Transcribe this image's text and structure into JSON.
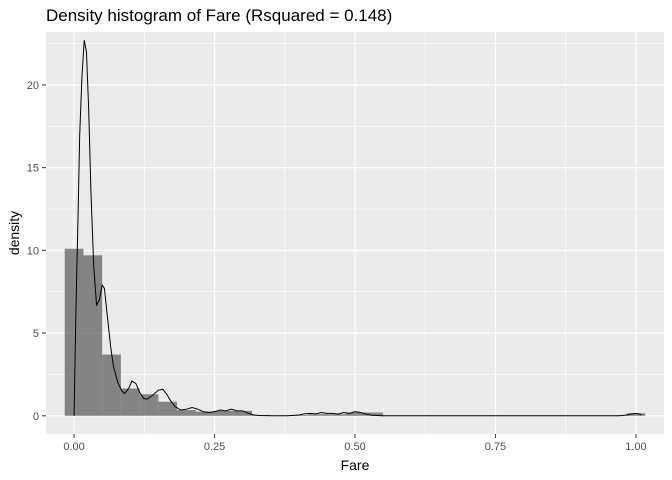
{
  "chart_data": {
    "type": "histogram",
    "title": "Density histogram of Fare (Rsquared = 0.148)",
    "xlabel": "Fare",
    "ylabel": "density",
    "xlim": [
      -0.05,
      1.05
    ],
    "ylim": [
      -1.1,
      23.2
    ],
    "x_ticks": [
      0.0,
      0.25,
      0.5,
      0.75,
      1.0
    ],
    "x_tick_labels": [
      "0.00",
      "0.25",
      "0.50",
      "0.75",
      "1.00"
    ],
    "y_ticks": [
      0,
      5,
      10,
      15,
      20
    ],
    "y_tick_labels": [
      "0",
      "5",
      "10",
      "15",
      "20"
    ],
    "grid": true,
    "colors": {
      "panel": "#ebebeb",
      "grid": "#ffffff",
      "bar": "#595959",
      "line": "#000000"
    },
    "bin_width": 0.0333,
    "bins": [
      {
        "x0": -0.0167,
        "x1": 0.0167,
        "density": 10.1
      },
      {
        "x0": 0.0167,
        "x1": 0.05,
        "density": 9.7
      },
      {
        "x0": 0.05,
        "x1": 0.0833,
        "density": 3.7
      },
      {
        "x0": 0.0833,
        "x1": 0.1167,
        "density": 1.65
      },
      {
        "x0": 0.1167,
        "x1": 0.15,
        "density": 1.3
      },
      {
        "x0": 0.15,
        "x1": 0.1833,
        "density": 0.85
      },
      {
        "x0": 0.1833,
        "x1": 0.2167,
        "density": 0.35
      },
      {
        "x0": 0.2167,
        "x1": 0.25,
        "density": 0.25
      },
      {
        "x0": 0.25,
        "x1": 0.2833,
        "density": 0.3
      },
      {
        "x0": 0.2833,
        "x1": 0.3167,
        "density": 0.3
      },
      {
        "x0": 0.3167,
        "x1": 0.35,
        "density": 0.05
      },
      {
        "x0": 0.35,
        "x1": 0.3833,
        "density": 0.0
      },
      {
        "x0": 0.3833,
        "x1": 0.4167,
        "density": 0.05
      },
      {
        "x0": 0.4167,
        "x1": 0.45,
        "density": 0.1
      },
      {
        "x0": 0.45,
        "x1": 0.4833,
        "density": 0.1
      },
      {
        "x0": 0.4833,
        "x1": 0.5167,
        "density": 0.2
      },
      {
        "x0": 0.5167,
        "x1": 0.55,
        "density": 0.2
      },
      {
        "x0": 0.9833,
        "x1": 1.0167,
        "density": 0.15
      }
    ],
    "density_curve": [
      [
        0.0,
        0.0
      ],
      [
        0.003,
        6.0
      ],
      [
        0.007,
        12.0
      ],
      [
        0.01,
        17.0
      ],
      [
        0.014,
        20.5
      ],
      [
        0.018,
        22.7
      ],
      [
        0.022,
        22.0
      ],
      [
        0.026,
        18.5
      ],
      [
        0.03,
        13.5
      ],
      [
        0.035,
        9.0
      ],
      [
        0.04,
        6.7
      ],
      [
        0.045,
        7.0
      ],
      [
        0.05,
        7.9
      ],
      [
        0.054,
        7.7
      ],
      [
        0.058,
        6.4
      ],
      [
        0.065,
        4.2
      ],
      [
        0.07,
        3.0
      ],
      [
        0.078,
        2.0
      ],
      [
        0.085,
        1.5
      ],
      [
        0.09,
        1.35
      ],
      [
        0.097,
        1.65
      ],
      [
        0.103,
        2.1
      ],
      [
        0.11,
        1.95
      ],
      [
        0.117,
        1.4
      ],
      [
        0.124,
        1.05
      ],
      [
        0.13,
        1.0
      ],
      [
        0.14,
        1.25
      ],
      [
        0.15,
        1.55
      ],
      [
        0.158,
        1.6
      ],
      [
        0.165,
        1.3
      ],
      [
        0.172,
        0.9
      ],
      [
        0.18,
        0.55
      ],
      [
        0.19,
        0.35
      ],
      [
        0.2,
        0.4
      ],
      [
        0.21,
        0.5
      ],
      [
        0.22,
        0.4
      ],
      [
        0.23,
        0.25
      ],
      [
        0.24,
        0.2
      ],
      [
        0.25,
        0.25
      ],
      [
        0.26,
        0.35
      ],
      [
        0.27,
        0.3
      ],
      [
        0.28,
        0.4
      ],
      [
        0.29,
        0.3
      ],
      [
        0.3,
        0.3
      ],
      [
        0.31,
        0.15
      ],
      [
        0.32,
        0.05
      ],
      [
        0.33,
        0.02
      ],
      [
        0.35,
        0.0
      ],
      [
        0.38,
        0.0
      ],
      [
        0.4,
        0.05
      ],
      [
        0.41,
        0.12
      ],
      [
        0.42,
        0.15
      ],
      [
        0.43,
        0.12
      ],
      [
        0.44,
        0.2
      ],
      [
        0.45,
        0.15
      ],
      [
        0.46,
        0.15
      ],
      [
        0.47,
        0.1
      ],
      [
        0.48,
        0.2
      ],
      [
        0.49,
        0.15
      ],
      [
        0.5,
        0.25
      ],
      [
        0.51,
        0.2
      ],
      [
        0.52,
        0.1
      ],
      [
        0.53,
        0.03
      ],
      [
        0.55,
        0.0
      ],
      [
        0.7,
        0.0
      ],
      [
        0.9,
        0.0
      ],
      [
        0.97,
        0.0
      ],
      [
        0.985,
        0.05
      ],
      [
        0.99,
        0.1
      ],
      [
        1.0,
        0.15
      ],
      [
        1.005,
        0.12
      ],
      [
        1.01,
        0.05
      ]
    ]
  }
}
